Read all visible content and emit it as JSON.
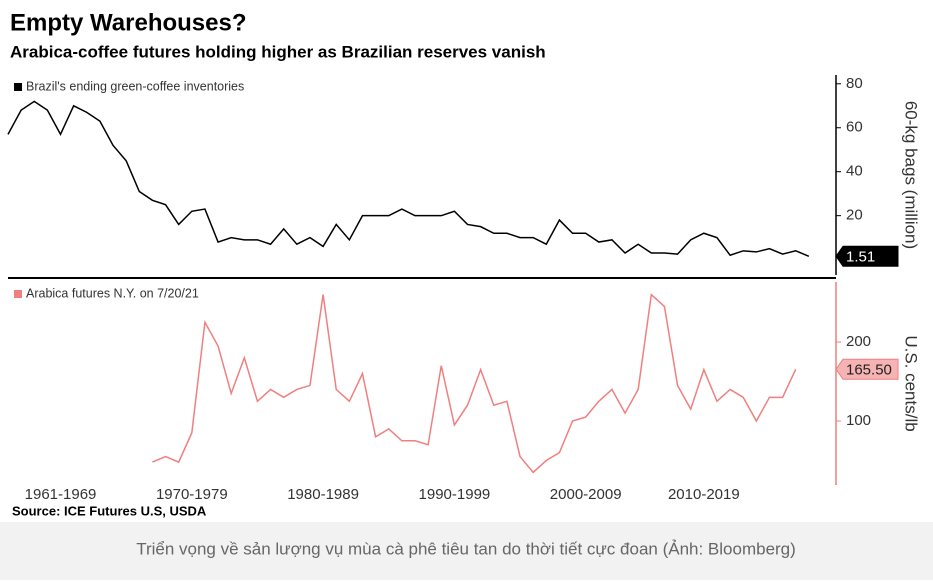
{
  "title": "Empty Warehouses?",
  "subtitle": "Arabica-coffee futures holding higher as Brazilian reserves vanish",
  "source": "Source: ICE Futures U.S, USDA",
  "caption": "Triển vọng về sản lượng vụ mùa cà phê tiêu tan do thời tiết cực đoan (Ảnh: Bloomberg)",
  "chart_data": [
    {
      "type": "line",
      "ylabel": "60-kg bags (million)",
      "xlim": [
        1961,
        2023
      ],
      "ylim": [
        -7,
        84
      ],
      "yticks": [
        20,
        40,
        60,
        80
      ],
      "series": [
        {
          "name": "Brazil's ending green-coffee inventories",
          "color": "#000000",
          "x": [
            1961,
            1962,
            1963,
            1964,
            1965,
            1966,
            1967,
            1968,
            1969,
            1970,
            1971,
            1972,
            1973,
            1974,
            1975,
            1976,
            1977,
            1978,
            1979,
            1980,
            1981,
            1982,
            1983,
            1984,
            1985,
            1986,
            1987,
            1988,
            1989,
            1990,
            1991,
            1992,
            1993,
            1994,
            1995,
            1996,
            1997,
            1998,
            1999,
            2000,
            2001,
            2002,
            2003,
            2004,
            2005,
            2006,
            2007,
            2008,
            2009,
            2010,
            2011,
            2012,
            2013,
            2014,
            2015,
            2016,
            2017,
            2018,
            2019,
            2020,
            2021,
            2022
          ],
          "values": [
            57,
            68,
            72,
            68,
            57,
            70,
            67,
            63,
            52,
            45,
            31,
            27,
            25,
            16,
            22,
            23,
            8,
            10,
            9,
            9,
            7,
            14,
            7,
            10,
            6,
            16,
            9,
            20,
            20,
            20,
            23,
            20,
            20,
            20,
            22,
            16,
            15,
            12,
            12,
            10,
            10,
            7,
            18,
            12,
            12,
            8,
            9,
            3,
            7,
            3,
            3,
            2.5,
            9,
            12,
            10,
            2,
            4,
            3.5,
            5,
            2.5,
            4,
            1.51
          ],
          "value_labels": [
            null,
            null,
            null,
            null,
            null,
            null,
            null,
            null,
            null,
            null,
            null,
            null,
            null,
            null,
            null,
            null,
            null,
            null,
            null,
            null,
            null,
            null,
            null,
            null,
            null,
            null,
            null,
            null,
            null,
            null,
            null,
            null,
            null,
            null,
            null,
            null,
            null,
            null,
            null,
            null,
            null,
            null,
            null,
            null,
            null,
            null,
            null,
            null,
            null,
            null,
            null,
            null,
            null,
            null,
            null,
            null,
            null,
            null,
            null,
            null,
            null,
            "1.51"
          ]
        }
      ]
    },
    {
      "type": "line",
      "ylabel": "U.S. cents/lb",
      "xlim": [
        1961,
        2023
      ],
      "ylim": [
        19,
        276
      ],
      "yticks": [
        100,
        200
      ],
      "xticks": [
        {
          "value": 1965,
          "label": "1961-1969"
        },
        {
          "value": 1975,
          "label": "1970-1979"
        },
        {
          "value": 1985,
          "label": "1980-1989"
        },
        {
          "value": 1995,
          "label": "1990-1999"
        },
        {
          "value": 2005,
          "label": "2000-2009"
        },
        {
          "value": 2014,
          "label": "2010-2019"
        }
      ],
      "series": [
        {
          "name": "Arabica futures N.Y.  on 7/20/21",
          "color": "#f07f7f",
          "x": [
            1972,
            1973,
            1974,
            1975,
            1976,
            1977,
            1978,
            1979,
            1980,
            1981,
            1982,
            1983,
            1984,
            1985,
            1986,
            1987,
            1988,
            1989,
            1990,
            1991,
            1992,
            1993,
            1994,
            1995,
            1996,
            1997,
            1998,
            1999,
            2000,
            2001,
            2002,
            2003,
            2004,
            2005,
            2006,
            2007,
            2008,
            2009,
            2010,
            2011,
            2012,
            2013,
            2014,
            2015,
            2016,
            2017,
            2018,
            2019,
            2020,
            2021
          ],
          "values": [
            48,
            55,
            48,
            85,
            225,
            195,
            135,
            180,
            125,
            140,
            130,
            140,
            145,
            260,
            140,
            125,
            160,
            80,
            90,
            75,
            75,
            70,
            170,
            95,
            120,
            165,
            120,
            125,
            55,
            35,
            50,
            60,
            100,
            105,
            125,
            140,
            110,
            140,
            260,
            245,
            145,
            115,
            165,
            125,
            140,
            130,
            100,
            130,
            130,
            165.5
          ],
          "value_labels": [
            null,
            null,
            null,
            null,
            null,
            null,
            null,
            null,
            null,
            null,
            null,
            null,
            null,
            null,
            null,
            null,
            null,
            null,
            null,
            null,
            null,
            null,
            null,
            null,
            null,
            null,
            null,
            null,
            null,
            null,
            null,
            null,
            null,
            null,
            null,
            null,
            null,
            null,
            null,
            null,
            null,
            null,
            null,
            null,
            null,
            null,
            null,
            null,
            null,
            "165.50"
          ]
        }
      ]
    }
  ]
}
